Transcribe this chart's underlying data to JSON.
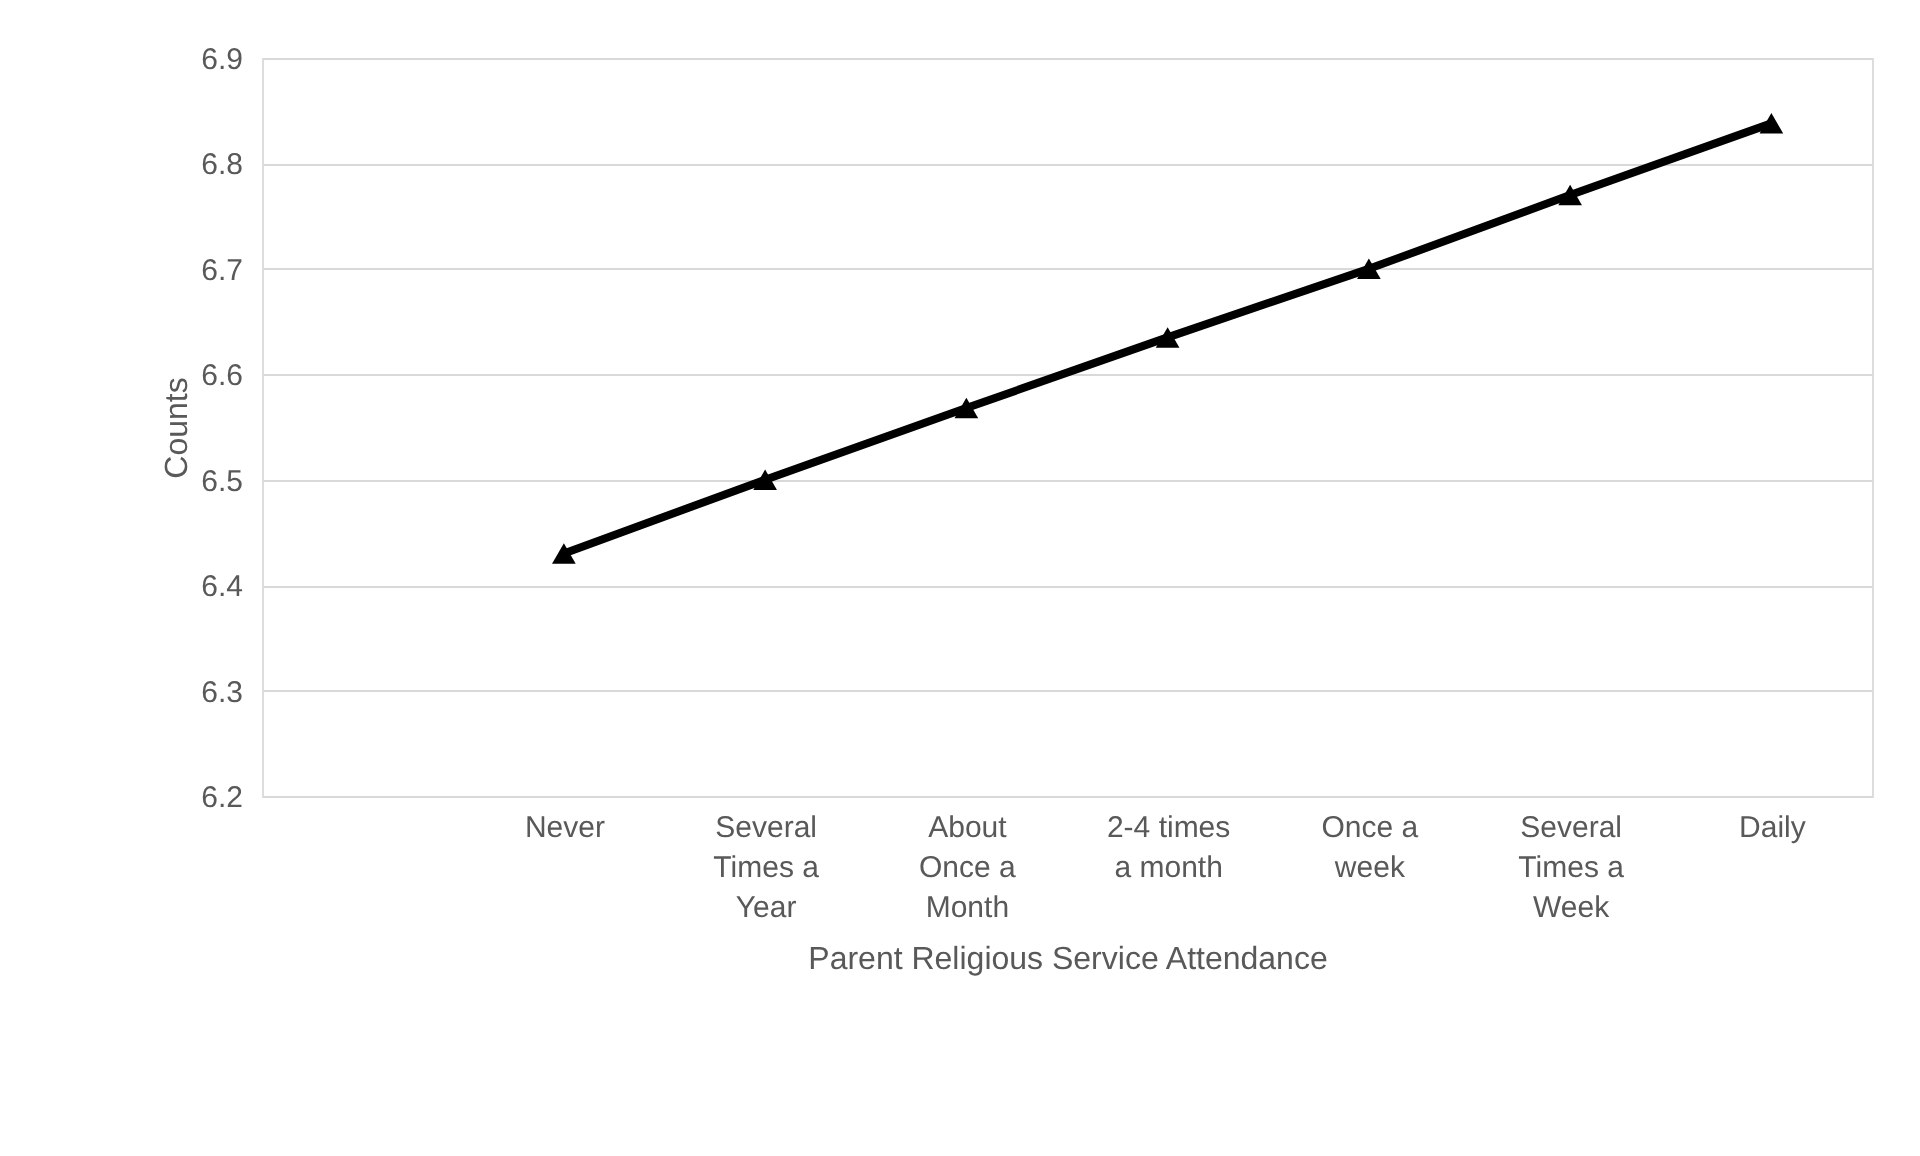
{
  "chart_data": {
    "type": "line",
    "xlabel": "Parent Religious Service Attendance",
    "ylabel": "Counts",
    "categories": [
      null,
      "Never",
      "Several Times a Year",
      "About Once a Month",
      "2-4 times a month",
      "Once a week",
      "Several Times a Week",
      "Daily"
    ],
    "series": [
      {
        "color": "#000000",
        "values": [
          null,
          6.43,
          6.5,
          6.568,
          6.635,
          6.7,
          6.77,
          6.838
        ]
      }
    ],
    "ylim": [
      6.2,
      6.9
    ],
    "yticks": [
      6.2,
      6.3,
      6.4,
      6.5,
      6.6,
      6.7,
      6.8,
      6.9
    ],
    "grid": "y",
    "marker": "triangle",
    "line_style": "solid"
  }
}
